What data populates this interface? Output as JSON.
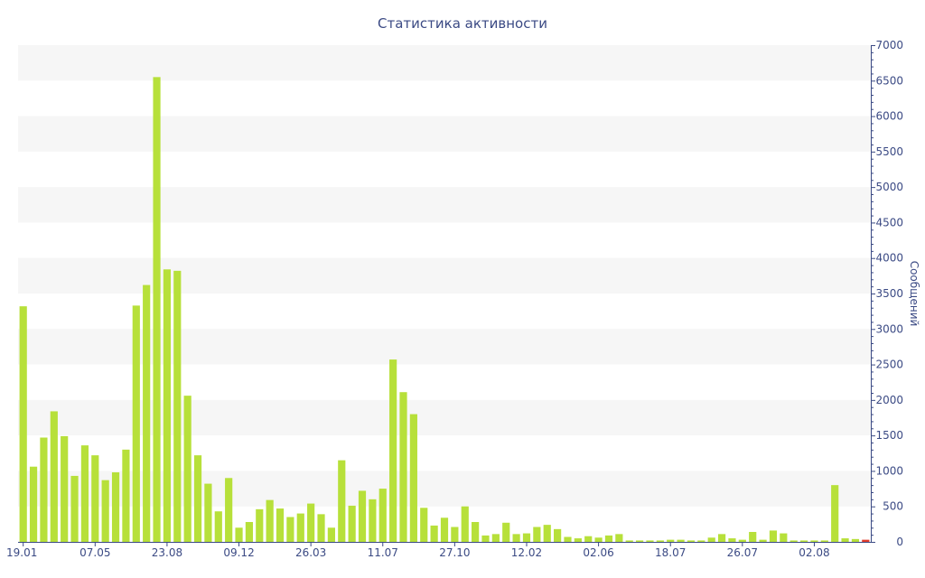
{
  "chart_data": {
    "type": "bar",
    "title": "Статистика активности",
    "ylabel": "Сообщений",
    "ylim": [
      0,
      7000
    ],
    "y_ticks": [
      0,
      500,
      1000,
      1500,
      2000,
      2500,
      3000,
      3500,
      4000,
      4500,
      5000,
      5500,
      6000,
      6500,
      7000
    ],
    "x_tick_labels": [
      {
        "index": 0,
        "label": "19.01"
      },
      {
        "index": 7,
        "label": "07.05"
      },
      {
        "index": 14,
        "label": "23.08"
      },
      {
        "index": 21,
        "label": "09.12"
      },
      {
        "index": 28,
        "label": "26.03"
      },
      {
        "index": 35,
        "label": "11.07"
      },
      {
        "index": 42,
        "label": "27.10"
      },
      {
        "index": 49,
        "label": "12.02"
      },
      {
        "index": 56,
        "label": "02.06"
      },
      {
        "index": 63,
        "label": "18.07"
      },
      {
        "index": 70,
        "label": "26.07"
      },
      {
        "index": 77,
        "label": "02.08"
      }
    ],
    "values": [
      3320,
      1060,
      1470,
      1840,
      1490,
      930,
      1360,
      1220,
      870,
      980,
      1300,
      3330,
      3620,
      6550,
      3840,
      3820,
      2060,
      1220,
      820,
      430,
      900,
      200,
      280,
      460,
      590,
      470,
      350,
      400,
      540,
      390,
      200,
      1150,
      510,
      720,
      600,
      750,
      2570,
      2110,
      1800,
      480,
      230,
      340,
      210,
      500,
      280,
      90,
      110,
      270,
      110,
      120,
      210,
      240,
      180,
      70,
      50,
      80,
      60,
      90,
      110,
      20,
      20,
      20,
      20,
      30,
      30,
      20,
      20,
      60,
      110,
      50,
      30,
      140,
      30,
      160,
      120,
      20,
      20,
      20,
      20,
      800,
      50,
      40,
      30
    ],
    "bar_color": "#b7e03a",
    "last_bar_color": "#e03a2a",
    "grid_band_color": "#f6f6f6",
    "axis_color": "#3b4a84",
    "grid": true
  }
}
